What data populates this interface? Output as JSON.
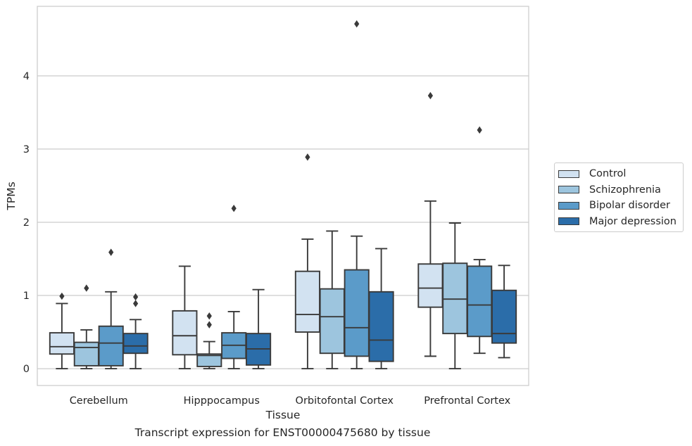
{
  "chart_data": {
    "type": "box",
    "title": "",
    "caption": "Transcript expression for ENST00000475680 by tissue",
    "xlabel": "Tissue",
    "ylabel": "TPMs",
    "ylim": [
      -0.23,
      4.95
    ],
    "yticks": [
      0,
      1,
      2,
      3,
      4
    ],
    "grid": "horizontal",
    "legend_position": "right",
    "categories": [
      "Cerebellum",
      "Hipppocampus",
      "Orbitofontal Cortex",
      "Prefrontal Cortex"
    ],
    "series": [
      {
        "name": "Control",
        "color": "#d2e2f1",
        "boxes": [
          {
            "whisker_low": 0.0,
            "q1": 0.2,
            "median": 0.3,
            "q3": 0.49,
            "whisker_high": 0.89,
            "outliers": [
              0.99
            ]
          },
          {
            "whisker_low": 0.0,
            "q1": 0.19,
            "median": 0.45,
            "q3": 0.79,
            "whisker_high": 1.4,
            "outliers": []
          },
          {
            "whisker_low": 0.0,
            "q1": 0.5,
            "median": 0.74,
            "q3": 1.33,
            "whisker_high": 1.77,
            "outliers": [
              2.89
            ]
          },
          {
            "whisker_low": 0.17,
            "q1": 0.84,
            "median": 1.1,
            "q3": 1.43,
            "whisker_high": 2.29,
            "outliers": [
              3.73
            ]
          }
        ]
      },
      {
        "name": "Schizophrenia",
        "color": "#9dc5de",
        "boxes": [
          {
            "whisker_low": 0.0,
            "q1": 0.04,
            "median": 0.29,
            "q3": 0.36,
            "whisker_high": 0.53,
            "outliers": [
              1.1
            ]
          },
          {
            "whisker_low": 0.0,
            "q1": 0.03,
            "median": 0.18,
            "q3": 0.2,
            "whisker_high": 0.37,
            "outliers": [
              0.6,
              0.72
            ]
          },
          {
            "whisker_low": 0.0,
            "q1": 0.21,
            "median": 0.71,
            "q3": 1.09,
            "whisker_high": 1.88,
            "outliers": []
          },
          {
            "whisker_low": 0.0,
            "q1": 0.48,
            "median": 0.95,
            "q3": 1.44,
            "whisker_high": 1.99,
            "outliers": []
          }
        ]
      },
      {
        "name": "Bipolar disorder",
        "color": "#5b9bc9",
        "boxes": [
          {
            "whisker_low": 0.0,
            "q1": 0.04,
            "median": 0.35,
            "q3": 0.58,
            "whisker_high": 1.05,
            "outliers": [
              1.59
            ]
          },
          {
            "whisker_low": 0.0,
            "q1": 0.14,
            "median": 0.32,
            "q3": 0.49,
            "whisker_high": 0.78,
            "outliers": [
              2.19
            ]
          },
          {
            "whisker_low": 0.0,
            "q1": 0.17,
            "median": 0.56,
            "q3": 1.35,
            "whisker_high": 1.81,
            "outliers": [
              4.71
            ]
          },
          {
            "whisker_low": 0.21,
            "q1": 0.44,
            "median": 0.87,
            "q3": 1.4,
            "whisker_high": 1.49,
            "outliers": [
              3.26
            ]
          }
        ]
      },
      {
        "name": "Major depression",
        "color": "#2b6da9",
        "boxes": [
          {
            "whisker_low": 0.0,
            "q1": 0.21,
            "median": 0.31,
            "q3": 0.48,
            "whisker_high": 0.67,
            "outliers": [
              0.89,
              0.98
            ]
          },
          {
            "whisker_low": 0.0,
            "q1": 0.05,
            "median": 0.27,
            "q3": 0.48,
            "whisker_high": 1.08,
            "outliers": []
          },
          {
            "whisker_low": 0.0,
            "q1": 0.1,
            "median": 0.39,
            "q3": 1.05,
            "whisker_high": 1.64,
            "outliers": []
          },
          {
            "whisker_low": 0.15,
            "q1": 0.35,
            "median": 0.48,
            "q3": 1.07,
            "whisker_high": 1.41,
            "outliers": []
          }
        ]
      }
    ]
  }
}
